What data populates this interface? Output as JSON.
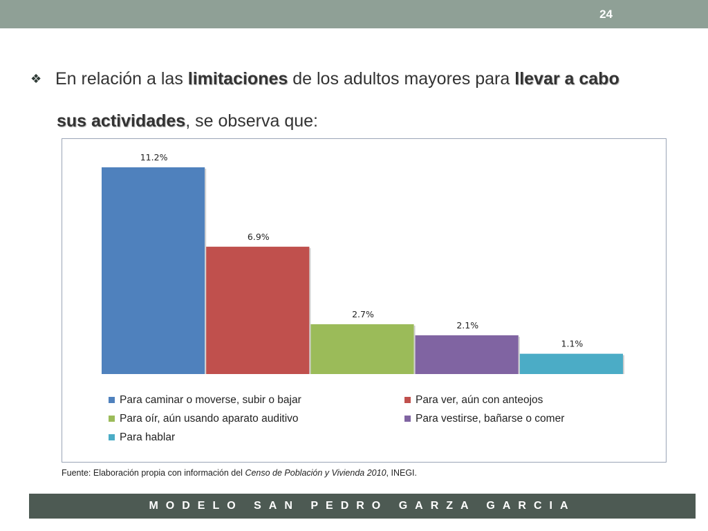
{
  "slide": {
    "number": "24"
  },
  "heading": {
    "bullet": "❖",
    "part1": "En relación a las ",
    "bold1": "limitaciones",
    "part2": " de los adultos mayores para ",
    "bold2": "llevar a cabo",
    "bold3": "sus actividades",
    "part3": ", se observa que:"
  },
  "chart_data": {
    "type": "bar",
    "categories": [
      "Para caminar o moverse, subir o bajar",
      "Para ver, aún con anteojos",
      "Para oír, aún usando aparato auditivo",
      "Para vestirse, bañarse o comer",
      "Para hablar"
    ],
    "values": [
      11.2,
      6.9,
      2.7,
      2.1,
      1.1
    ],
    "data_labels": [
      "11.2%",
      "6.9%",
      "2.7%",
      "2.1%",
      "1.1%"
    ],
    "colors": [
      "#4f81bd",
      "#c0504d",
      "#9bbb59",
      "#8064a2",
      "#4bacc6"
    ],
    "ylim": [
      0,
      11.2
    ],
    "grid": false,
    "legend_position": "bottom",
    "title": "",
    "xlabel": "",
    "ylabel": ""
  },
  "source": {
    "prefix": "Fuente: Elaboración propia con información del ",
    "italic": "Censo de Población y Vivienda  2010",
    "suffix": ", INEGI."
  },
  "footer": {
    "text": "MODELO SAN PEDRO GARZA GARCIA"
  }
}
